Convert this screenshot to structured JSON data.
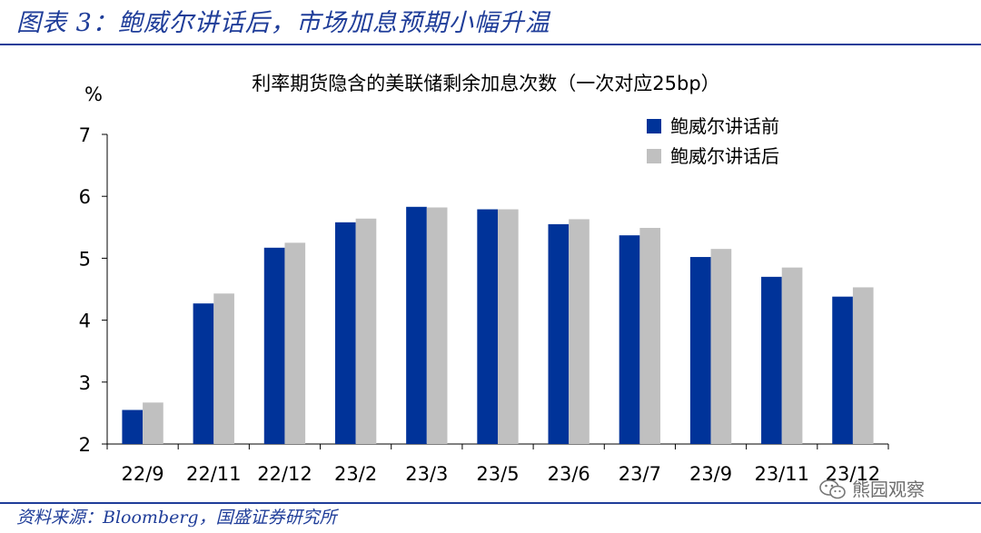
{
  "figure_title": "图表 3：鲍威尔讲话后，市场加息预期小幅升温",
  "source": "资料来源：Bloomberg，国盛证券研究所",
  "watermark": "熊园观察",
  "watermark_icon": "wechat-icon",
  "colors": {
    "series_before": "#003399",
    "series_after": "#c0c0c0",
    "title_blue": "#1f3d99"
  },
  "chart_data": {
    "type": "bar",
    "title": "利率期货隐含的美联储剩余加息次数（一次对应25bp）",
    "ylabel": "%",
    "xlabel": "",
    "ylim": [
      2,
      7
    ],
    "yticks": [
      2,
      3,
      4,
      5,
      6,
      7
    ],
    "grid": false,
    "legend_position": "top-right",
    "categories": [
      "22/9",
      "22/11",
      "22/12",
      "23/2",
      "23/3",
      "23/5",
      "23/6",
      "23/7",
      "23/9",
      "23/11",
      "23/12"
    ],
    "series": [
      {
        "name": "鲍威尔讲话前",
        "values": [
          2.55,
          4.27,
          5.17,
          5.58,
          5.83,
          5.79,
          5.55,
          5.37,
          5.02,
          4.7,
          4.38
        ]
      },
      {
        "name": "鲍威尔讲话后",
        "values": [
          2.67,
          4.43,
          5.25,
          5.64,
          5.82,
          5.79,
          5.63,
          5.49,
          5.15,
          4.85,
          4.53
        ]
      }
    ]
  }
}
